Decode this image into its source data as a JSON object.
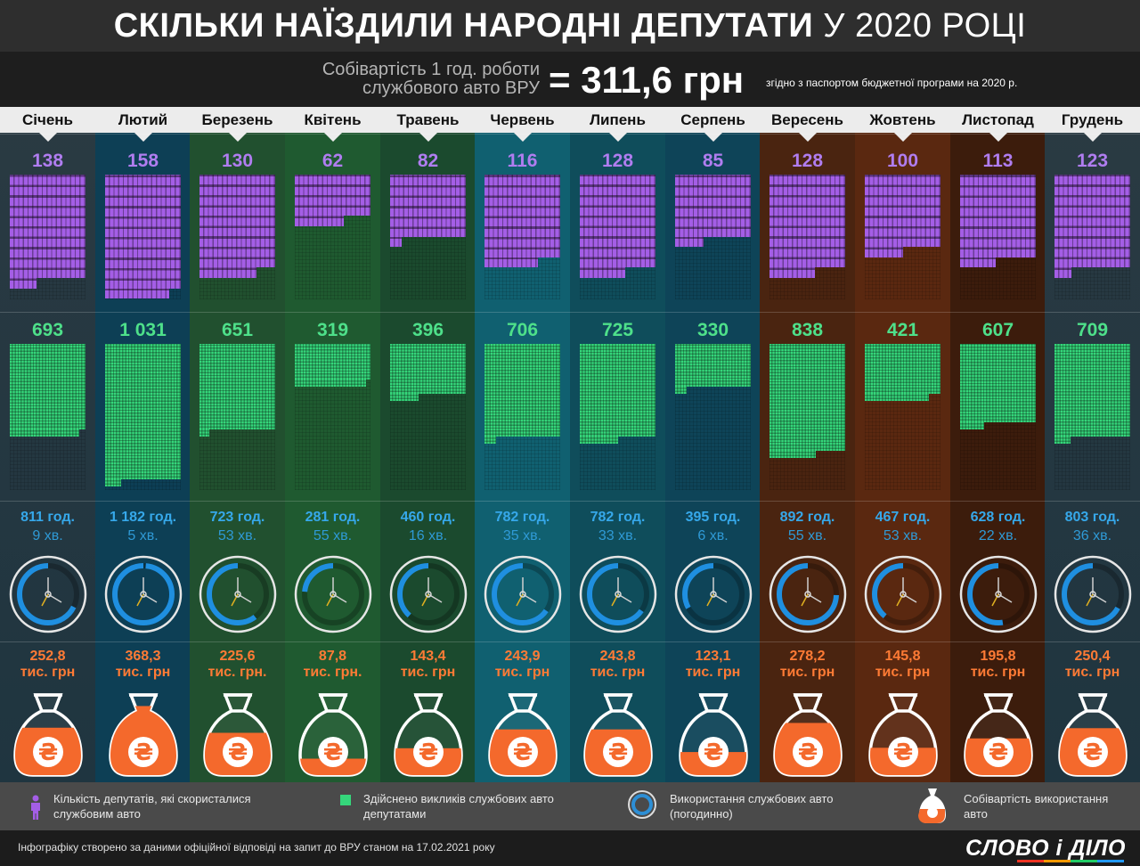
{
  "header": {
    "title_main": "СКІЛЬКИ НАЇЗДИЛИ НАРОДНІ ДЕПУТАТИ",
    "title_year": "У 2020 РОЦІ",
    "cost_label_line1": "Собівартість 1 год. роботи",
    "cost_label_line2": "службового авто ВРУ",
    "cost_value": "= 311,6 грн",
    "cost_note": "згідно з паспортом бюджетної програми на 2020 р."
  },
  "colors": {
    "deputies": "#a45ee6",
    "calls": "#35d77b",
    "hours": "#36a8ea",
    "cost": "#ff7b35"
  },
  "chart_data": {
    "type": "table",
    "categories": [
      "Січень",
      "Лютий",
      "Березень",
      "Квітень",
      "Травень",
      "Червень",
      "Липень",
      "Серпень",
      "Вересень",
      "Жовтень",
      "Листопад",
      "Грудень"
    ],
    "series": [
      {
        "name": "Кількість депутатів, які скористалися службовим авто",
        "values": [
          138,
          158,
          130,
          62,
          82,
          116,
          128,
          85,
          128,
          100,
          113,
          123
        ],
        "labels": [
          "138",
          "158",
          "130",
          "62",
          "82",
          "116",
          "128",
          "85",
          "128",
          "100",
          "113",
          "123"
        ]
      },
      {
        "name": "Здійснено викликів службових авто депутатами",
        "values": [
          693,
          1031,
          651,
          319,
          396,
          706,
          725,
          330,
          838,
          421,
          607,
          709
        ],
        "labels": [
          "693",
          "1 031",
          "651",
          "319",
          "396",
          "706",
          "725",
          "330",
          "838",
          "421",
          "607",
          "709"
        ]
      },
      {
        "name": "Використання службових авто (погодинно)",
        "values_hours": [
          811.15,
          1182.08,
          723.88,
          281.92,
          460.27,
          782.58,
          782.55,
          395.1,
          892.92,
          467.88,
          628.37,
          803.6
        ],
        "hours_labels": [
          "811 год.",
          "1 182 год.",
          "723 год.",
          "281 год.",
          "460 год.",
          "782 год.",
          "782 год.",
          "395 год.",
          "892 год.",
          "467 год.",
          "628 год.",
          "803 год."
        ],
        "minutes_labels": [
          "9 хв.",
          "5 хв.",
          "53 хв.",
          "55 хв.",
          "16 хв.",
          "35 хв.",
          "33 хв.",
          "6 хв.",
          "55 хв.",
          "53 хв.",
          "22 хв.",
          "36 хв."
        ]
      },
      {
        "name": "Собівартість використання авто",
        "values": [
          252.8,
          368.3,
          225.6,
          87.8,
          143.4,
          243.9,
          243.8,
          123.1,
          278.2,
          145.8,
          195.8,
          250.4
        ],
        "labels": [
          "252,8",
          "368,3",
          "225,6",
          "87,8",
          "143,4",
          "243,9",
          "243,8",
          "123,1",
          "278,2",
          "145,8",
          "195,8",
          "250,4"
        ],
        "unit_labels": [
          "тис. грн",
          "тис. грн",
          "тис. грн.",
          "тис. грн.",
          "тис. грн",
          "тис. грн",
          "тис. грн",
          "тис. грн",
          "тис. грн",
          "тис. грн",
          "тис. грн",
          "тис. грн"
        ]
      }
    ]
  },
  "legend": [
    {
      "icon": "person-icon",
      "text": "Кількість депутатів, які скористалися службовим авто"
    },
    {
      "icon": "green-square-icon",
      "text": "Здійснено викликів службових авто депутатами"
    },
    {
      "icon": "clock-icon",
      "text": "Використання службових авто (погодинно)"
    },
    {
      "icon": "money-bag-icon",
      "text": "Собівартість використання авто"
    }
  ],
  "footer": {
    "source": "Інфографіку створено за даними офіційної відповіді на запит до ВРУ станом на 17.02.2021 року",
    "logo": "СЛОВО і ДІЛО"
  },
  "col_backgrounds": [
    "#1f3f50",
    "#0d3f55",
    "#21502f",
    "#1f5a30",
    "#1b4a2e",
    "#106070",
    "#0f4d5b",
    "#0e4458",
    "#4a2410",
    "#5a2810",
    "#3c1c0c",
    "#0b3f4f"
  ],
  "currency_symbol": "₴"
}
